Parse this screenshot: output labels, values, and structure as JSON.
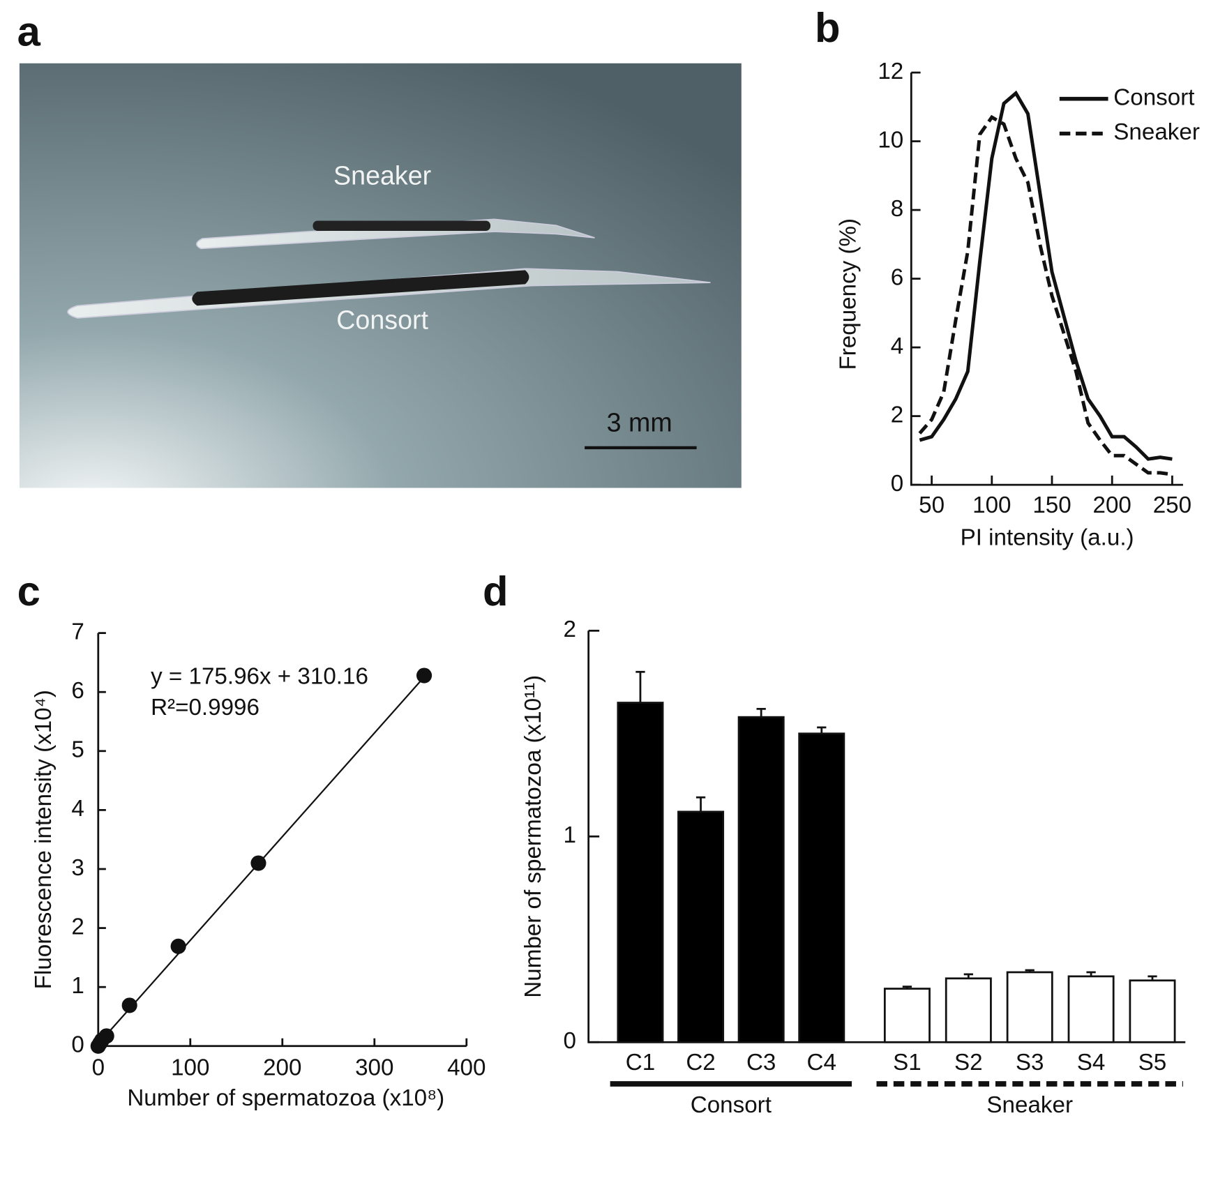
{
  "chart_data": [
    {
      "type": "image",
      "panel_label": "a",
      "annotations": [
        "Sneaker",
        "Consort",
        "3 mm"
      ]
    },
    {
      "type": "line",
      "panel_label": "b",
      "x_label": "PI intensity (a.u.)",
      "y_label": "Frequency (%)",
      "x": [
        40,
        50,
        60,
        70,
        80,
        90,
        100,
        110,
        120,
        130,
        140,
        150,
        160,
        170,
        180,
        190,
        200,
        210,
        220,
        230,
        240,
        250
      ],
      "series": [
        {
          "name": "Consort",
          "color": "#111111",
          "dashed": false,
          "values": [
            1.3,
            1.4,
            1.9,
            2.5,
            3.3,
            6.5,
            9.5,
            11.1,
            11.4,
            10.8,
            8.5,
            6.2,
            4.9,
            3.6,
            2.5,
            2.0,
            1.4,
            1.4,
            1.1,
            0.75,
            0.8,
            0.75
          ]
        },
        {
          "name": "Sneaker",
          "color": "#111111",
          "dashed": true,
          "values": [
            1.5,
            1.9,
            2.7,
            4.8,
            6.8,
            10.2,
            10.7,
            10.5,
            9.5,
            8.8,
            7.0,
            5.5,
            4.4,
            3.3,
            1.8,
            1.3,
            0.85,
            0.85,
            0.6,
            0.35,
            0.35,
            0.3
          ]
        }
      ],
      "xlim": [
        33,
        259
      ],
      "xticks": [
        50,
        100,
        150,
        200,
        250
      ],
      "ylim": [
        0,
        12
      ],
      "yticks": [
        0,
        2,
        4,
        6,
        8,
        10,
        12
      ],
      "legend": "upper right"
    },
    {
      "type": "scatter",
      "panel_label": "c",
      "x_label": "Number of spermatozoa (x10⁸)",
      "y_label": "Fluorescence intensity (x10⁴)",
      "x": [
        0,
        2,
        4,
        9,
        34,
        87,
        174,
        354
      ],
      "values": [
        0,
        0.05,
        0.1,
        0.17,
        0.69,
        1.69,
        3.1,
        6.28
      ],
      "color": "#111111",
      "trendline": {
        "x": [
          -2,
          356
        ],
        "y": [
          0,
          6.29
        ]
      },
      "annotations": [
        "y = 175.96x + 310.16",
        "R²=0.9996"
      ],
      "xlim": [
        0,
        400
      ],
      "xticks": [
        0,
        100,
        200,
        300,
        400
      ],
      "ylim": [
        0,
        7
      ],
      "yticks": [
        0,
        1,
        2,
        3,
        4,
        5,
        6,
        7
      ]
    },
    {
      "type": "bar",
      "panel_label": "d",
      "y_label": "Number of spermatozoa (x10¹¹)",
      "categories": [
        "C1",
        "C2",
        "C3",
        "C4",
        "S1",
        "S2",
        "S3",
        "S4",
        "S5"
      ],
      "values": [
        1.65,
        1.12,
        1.58,
        1.5,
        0.26,
        0.31,
        0.34,
        0.32,
        0.3
      ],
      "errors": [
        0.15,
        0.07,
        0.04,
        0.03,
        0.01,
        0.02,
        0.01,
        0.02,
        0.02
      ],
      "colors": [
        "#000000",
        "#000000",
        "#000000",
        "#000000",
        "#ffffff",
        "#ffffff",
        "#ffffff",
        "#ffffff",
        "#ffffff"
      ],
      "groups": [
        {
          "name": "Consort",
          "size": 4,
          "dashed": false
        },
        {
          "name": "Sneaker",
          "size": 5,
          "dashed": true
        }
      ],
      "ylim": [
        0,
        2
      ],
      "yticks": [
        0,
        1,
        2
      ]
    }
  ]
}
